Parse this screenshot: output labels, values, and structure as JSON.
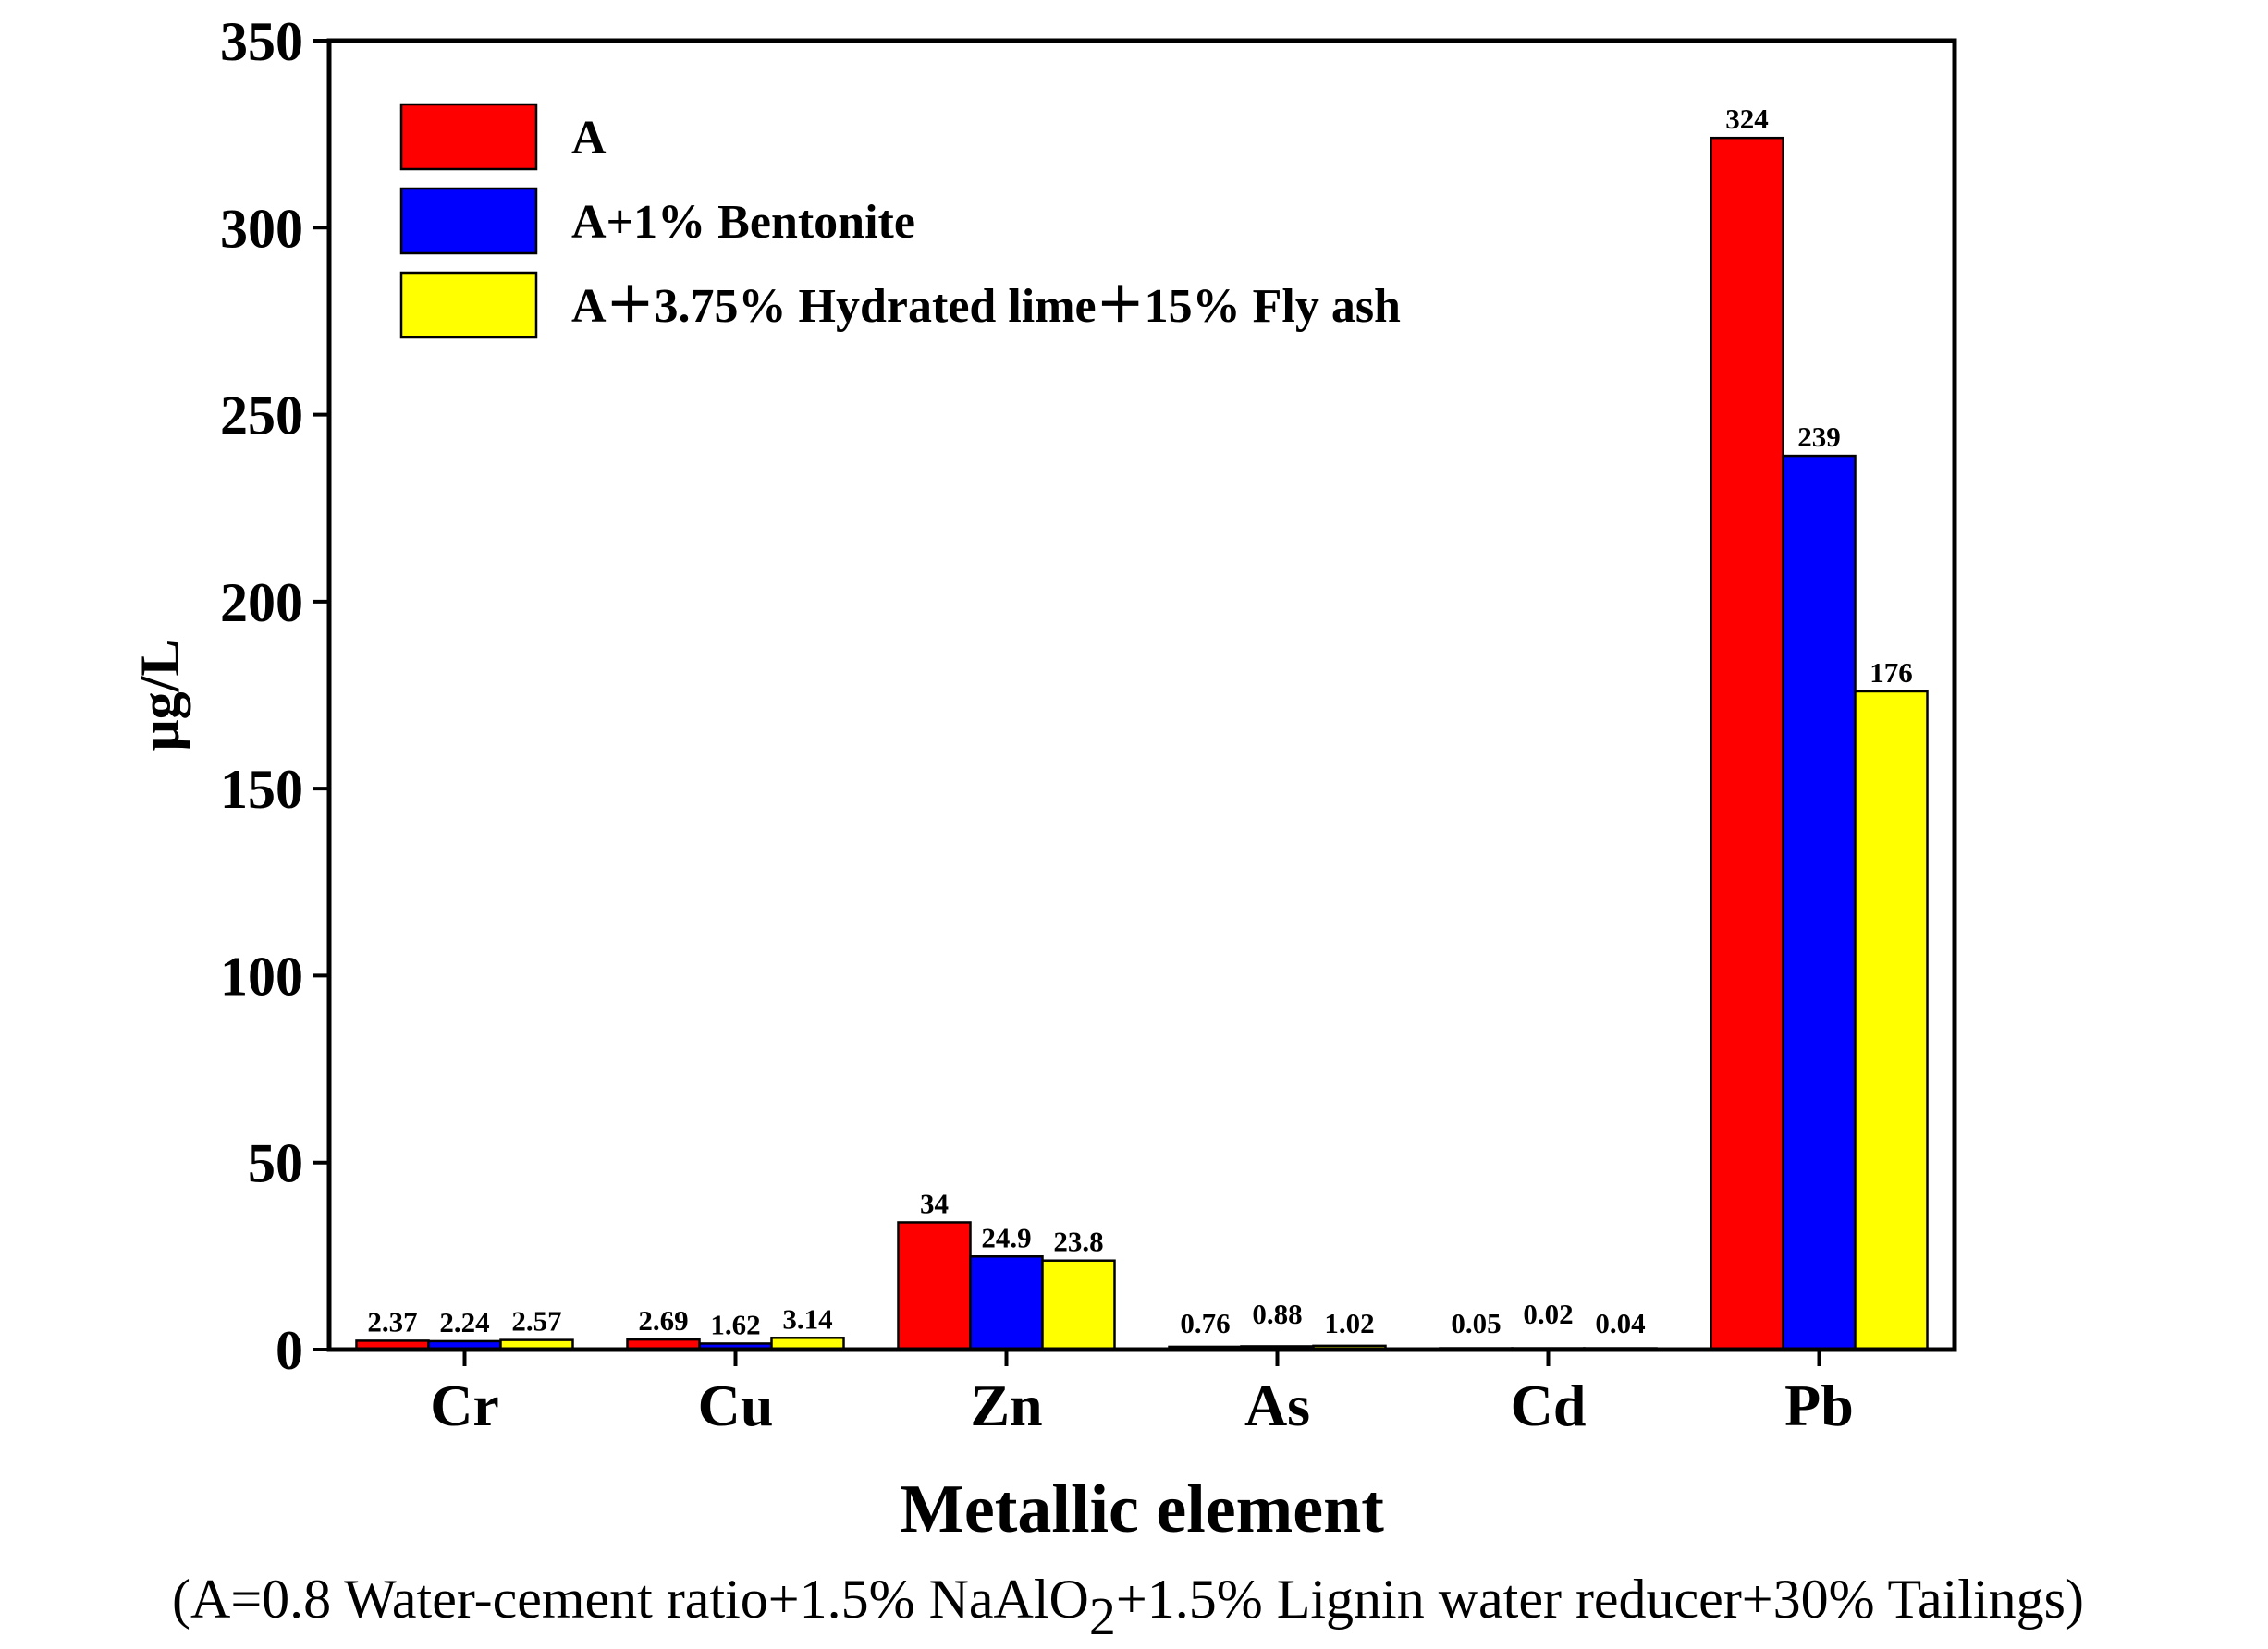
{
  "chart_data": {
    "type": "bar",
    "title": "",
    "xlabel": "Metallic element",
    "ylabel": "μg/L",
    "ylim": [
      0,
      350
    ],
    "yticks": [
      "0",
      "50",
      "100",
      "150",
      "200",
      "250",
      "300",
      "350"
    ],
    "categories": [
      "Cr",
      "Cu",
      "Zn",
      "As",
      "Cd",
      "Pb"
    ],
    "series": [
      {
        "name": "A",
        "color": "#ff0000",
        "values": [
          2.37,
          2.69,
          34,
          0.76,
          0.05,
          324
        ],
        "labels": [
          "2.37",
          "2.69",
          "34",
          "0.76",
          "0.05",
          "324"
        ]
      },
      {
        "name": "A+1% Bentonite",
        "color": "#0000ff",
        "values": [
          2.24,
          1.62,
          24.9,
          0.88,
          0.02,
          239
        ],
        "labels": [
          "2.24",
          "1.62",
          "24.9",
          "0.88",
          "0.02",
          "239"
        ]
      },
      {
        "name": "A＋3.75% Hydrated lime＋15% Fly ash",
        "color": "#ffff00",
        "values": [
          2.57,
          3.14,
          23.8,
          1.02,
          0.04,
          176
        ],
        "labels": [
          "2.57",
          "3.14",
          "23.8",
          "1.02",
          "0.04",
          "176"
        ]
      }
    ],
    "legend_position": "top-left",
    "caption": {
      "before": "(A=0.8 Water-cement ratio+1.5% NaAlO",
      "subscript": "2",
      "after": "+1.5% Lignin water reducer+30% Tailings)"
    }
  }
}
